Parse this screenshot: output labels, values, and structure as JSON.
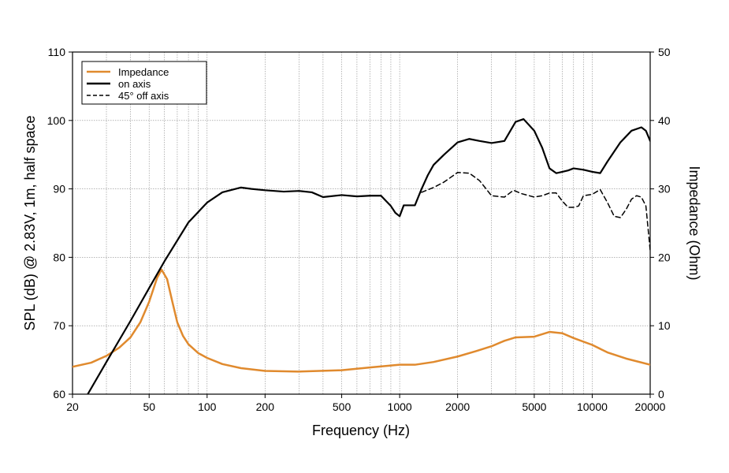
{
  "chart_data": {
    "type": "line",
    "xscale": "log",
    "xlabel": "Frequency (Hz)",
    "ylabel_left": "SPL (dB) @ 2.83V, 1m, half space",
    "ylabel_right": "Impedance (Ohm)",
    "xlim": [
      20,
      20000
    ],
    "ylim_left": [
      60,
      110
    ],
    "ylim_right": [
      0,
      50
    ],
    "grid": true,
    "legend_position": "top-left",
    "x_ticks": [
      20,
      50,
      100,
      200,
      500,
      1000,
      2000,
      5000,
      10000,
      20000
    ],
    "x_tick_labels": [
      "20",
      "50",
      "100",
      "200",
      "500",
      "1000",
      "2000",
      "5000",
      "10000",
      "20000"
    ],
    "y_left_ticks": [
      60,
      70,
      80,
      90,
      100,
      110
    ],
    "y_left_tick_labels": [
      "60",
      "70",
      "80",
      "90",
      "100",
      "110"
    ],
    "y_right_ticks": [
      0,
      10,
      20,
      30,
      40,
      50
    ],
    "y_right_tick_labels": [
      "0",
      "10",
      "20",
      "30",
      "40",
      "50"
    ],
    "series": [
      {
        "name": "Impedance",
        "axis": "right",
        "color": "#e08a2e",
        "dash": "solid",
        "x": [
          20,
          25,
          30,
          35,
          40,
          45,
          50,
          55,
          58,
          62,
          66,
          70,
          75,
          80,
          90,
          100,
          120,
          150,
          200,
          300,
          500,
          700,
          1000,
          1200,
          1500,
          2000,
          2500,
          3000,
          3500,
          4000,
          5000,
          6000,
          7000,
          8000,
          10000,
          12000,
          15000,
          20000
        ],
        "y": [
          4.0,
          4.6,
          5.6,
          6.8,
          8.3,
          10.5,
          13.5,
          17.0,
          18.2,
          16.8,
          13.5,
          10.5,
          8.5,
          7.3,
          6.0,
          5.3,
          4.4,
          3.8,
          3.4,
          3.3,
          3.5,
          3.9,
          4.3,
          4.3,
          4.7,
          5.5,
          6.3,
          7.0,
          7.8,
          8.3,
          8.4,
          9.1,
          8.9,
          8.2,
          7.2,
          6.1,
          5.2,
          4.3
        ]
      },
      {
        "name": "on axis",
        "axis": "left",
        "color": "#000000",
        "dash": "solid",
        "x": [
          24,
          30,
          40,
          50,
          60,
          80,
          100,
          120,
          150,
          170,
          200,
          250,
          300,
          350,
          400,
          500,
          600,
          700,
          800,
          900,
          950,
          1000,
          1050,
          1100,
          1200,
          1300,
          1400,
          1500,
          1700,
          2000,
          2300,
          2600,
          3000,
          3500,
          4000,
          4400,
          5000,
          5500,
          6000,
          6500,
          7000,
          7500,
          8000,
          9000,
          10000,
          11000,
          12000,
          14000,
          16000,
          18000,
          19000,
          20000
        ],
        "y": [
          60,
          64.7,
          70.7,
          75.5,
          79.4,
          85.1,
          88.0,
          89.5,
          90.2,
          90.0,
          89.8,
          89.6,
          89.7,
          89.5,
          88.8,
          89.1,
          88.9,
          89.0,
          89.0,
          87.5,
          86.5,
          86.0,
          87.6,
          87.6,
          87.6,
          90.0,
          92.0,
          93.5,
          95.0,
          96.8,
          97.3,
          97.0,
          96.7,
          97.0,
          99.8,
          100.2,
          98.5,
          96.0,
          93.0,
          92.3,
          92.5,
          92.7,
          93.0,
          92.8,
          92.5,
          92.3,
          94.0,
          96.8,
          98.5,
          99.0,
          98.5,
          97.0
        ]
      },
      {
        "name": "45° off axis",
        "axis": "left",
        "color": "#000000",
        "dash": "dashed",
        "x": [
          1300,
          1500,
          1700,
          2000,
          2300,
          2600,
          3000,
          3500,
          3900,
          4300,
          5000,
          5500,
          6000,
          6500,
          7000,
          7500,
          8000,
          8500,
          9000,
          10000,
          11000,
          12000,
          13000,
          14000,
          15000,
          16000,
          17000,
          18000,
          19000,
          20000
        ],
        "y": [
          89.5,
          90.2,
          91.0,
          92.4,
          92.3,
          91.2,
          89.0,
          88.8,
          89.8,
          89.3,
          88.8,
          89.0,
          89.4,
          89.4,
          88.2,
          87.3,
          87.3,
          87.5,
          89.0,
          89.2,
          89.9,
          88.0,
          86.0,
          85.8,
          87.0,
          88.5,
          89.0,
          88.8,
          87.5,
          81.0
        ]
      }
    ]
  }
}
